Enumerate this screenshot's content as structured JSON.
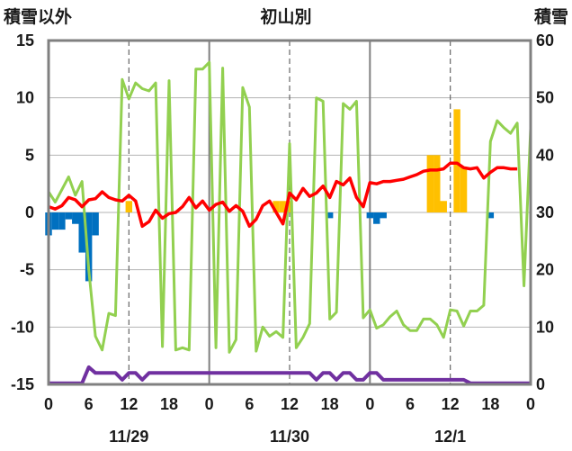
{
  "header": {
    "left_label": "積雪以外",
    "title": "初山別",
    "right_label": "積雪"
  },
  "chart_data": {
    "type": "bar+line",
    "title": "初山別",
    "ylabel_left": "積雪以外",
    "ylabel_right": "積雪",
    "ylim_left": [
      -15,
      15
    ],
    "ylim_right": [
      0,
      60
    ],
    "yticks_left": [
      "15",
      "10",
      "5",
      "0",
      "-5",
      "-10",
      "-15"
    ],
    "yticks_right": [
      "60",
      "50",
      "40",
      "30",
      "20",
      "10",
      "0"
    ],
    "xlim_hours": [
      0,
      72
    ],
    "xtick_labels": [
      "0",
      "6",
      "12",
      "18",
      "0",
      "6",
      "12",
      "18",
      "0",
      "6",
      "12",
      "18",
      "0"
    ],
    "date_labels": [
      "11/29",
      "11/30",
      "12/1"
    ],
    "grid": "dashed vertical lines at 12h, solid at day boundaries",
    "colors": {
      "positive_bar": "#ffc000",
      "negative_bar": "#0070c0",
      "temperature": "#ff0000",
      "snow_depth": "#92d050",
      "bottom_series": "#7030a0",
      "frame": "#808080"
    },
    "bar_series": [
      {
        "x": 0,
        "value": -2.0
      },
      {
        "x": 1,
        "value": -1.5
      },
      {
        "x": 2,
        "value": -1.5
      },
      {
        "x": 3,
        "value": -0.6
      },
      {
        "x": 4,
        "value": -1.0
      },
      {
        "x": 5,
        "value": -3.5
      },
      {
        "x": 6,
        "value": -6.0
      },
      {
        "x": 7,
        "value": -2.0
      },
      {
        "x": 12,
        "value": 1.0
      },
      {
        "x": 34,
        "value": 1.0
      },
      {
        "x": 35,
        "value": 1.0
      },
      {
        "x": 36,
        "value": 1.0
      },
      {
        "x": 42,
        "value": -0.5
      },
      {
        "x": 48,
        "value": -0.5
      },
      {
        "x": 49,
        "value": -1.0
      },
      {
        "x": 50,
        "value": -0.5
      },
      {
        "x": 57,
        "value": 5.0
      },
      {
        "x": 58,
        "value": 5.0
      },
      {
        "x": 59,
        "value": 1.0
      },
      {
        "x": 61,
        "value": 9.0
      },
      {
        "x": 62,
        "value": 4.0
      },
      {
        "x": 66,
        "value": -0.5
      }
    ],
    "temperature_series": [
      {
        "x": 0,
        "y": 0.5
      },
      {
        "x": 1,
        "y": 0.3
      },
      {
        "x": 2,
        "y": 0.6
      },
      {
        "x": 3,
        "y": 1.3
      },
      {
        "x": 4,
        "y": 1.1
      },
      {
        "x": 5,
        "y": 0.5
      },
      {
        "x": 6,
        "y": 1.1
      },
      {
        "x": 7,
        "y": 1.2
      },
      {
        "x": 8,
        "y": 1.8
      },
      {
        "x": 9,
        "y": 1.3
      },
      {
        "x": 10,
        "y": 1.1
      },
      {
        "x": 11,
        "y": 1.0
      },
      {
        "x": 12,
        "y": 1.5
      },
      {
        "x": 13,
        "y": 1.0
      },
      {
        "x": 14,
        "y": -1.2
      },
      {
        "x": 15,
        "y": -0.8
      },
      {
        "x": 16,
        "y": 0.2
      },
      {
        "x": 17,
        "y": -0.5
      },
      {
        "x": 18,
        "y": -0.1
      },
      {
        "x": 19,
        "y": 0.0
      },
      {
        "x": 20,
        "y": 0.5
      },
      {
        "x": 21,
        "y": 1.3
      },
      {
        "x": 22,
        "y": 0.4
      },
      {
        "x": 23,
        "y": 1.0
      },
      {
        "x": 24,
        "y": 0.2
      },
      {
        "x": 25,
        "y": 0.7
      },
      {
        "x": 26,
        "y": 0.9
      },
      {
        "x": 27,
        "y": 0.1
      },
      {
        "x": 28,
        "y": 0.6
      },
      {
        "x": 29,
        "y": 0.1
      },
      {
        "x": 30,
        "y": -1.2
      },
      {
        "x": 31,
        "y": -0.6
      },
      {
        "x": 32,
        "y": 0.6
      },
      {
        "x": 33,
        "y": 1.0
      },
      {
        "x": 34,
        "y": 0.0
      },
      {
        "x": 35,
        "y": -1.0
      },
      {
        "x": 36,
        "y": 1.7
      },
      {
        "x": 37,
        "y": 1.1
      },
      {
        "x": 38,
        "y": 2.1
      },
      {
        "x": 39,
        "y": 1.4
      },
      {
        "x": 40,
        "y": 1.7
      },
      {
        "x": 41,
        "y": 2.3
      },
      {
        "x": 42,
        "y": 1.3
      },
      {
        "x": 43,
        "y": 2.7
      },
      {
        "x": 44,
        "y": 2.4
      },
      {
        "x": 45,
        "y": 3.0
      },
      {
        "x": 46,
        "y": 1.3
      },
      {
        "x": 47,
        "y": 0.5
      },
      {
        "x": 48,
        "y": 2.6
      },
      {
        "x": 49,
        "y": 2.5
      },
      {
        "x": 50,
        "y": 2.7
      },
      {
        "x": 51,
        "y": 2.7
      },
      {
        "x": 52,
        "y": 2.8
      },
      {
        "x": 53,
        "y": 2.9
      },
      {
        "x": 54,
        "y": 3.1
      },
      {
        "x": 55,
        "y": 3.3
      },
      {
        "x": 56,
        "y": 3.6
      },
      {
        "x": 57,
        "y": 3.7
      },
      {
        "x": 58,
        "y": 3.7
      },
      {
        "x": 59,
        "y": 3.8
      },
      {
        "x": 60,
        "y": 4.3
      },
      {
        "x": 61,
        "y": 4.3
      },
      {
        "x": 62,
        "y": 3.9
      },
      {
        "x": 63,
        "y": 3.8
      },
      {
        "x": 64,
        "y": 3.9
      },
      {
        "x": 65,
        "y": 3.0
      },
      {
        "x": 66,
        "y": 3.5
      },
      {
        "x": 67,
        "y": 3.9
      },
      {
        "x": 68,
        "y": 3.9
      },
      {
        "x": 69,
        "y": 3.8
      },
      {
        "x": 70,
        "y": 3.8
      }
    ],
    "snow_depth_series": [
      {
        "x": 0,
        "y": 1.8
      },
      {
        "x": 1,
        "y": 0.9
      },
      {
        "x": 2,
        "y": 2.0
      },
      {
        "x": 3,
        "y": 3.1
      },
      {
        "x": 4,
        "y": 1.5
      },
      {
        "x": 5,
        "y": 2.7
      },
      {
        "x": 6,
        "y": -5.0
      },
      {
        "x": 7,
        "y": -10.8
      },
      {
        "x": 8,
        "y": -12.0
      },
      {
        "x": 9,
        "y": -8.8
      },
      {
        "x": 10,
        "y": -9.0
      },
      {
        "x": 11,
        "y": 11.6
      },
      {
        "x": 12,
        "y": 9.9
      },
      {
        "x": 13,
        "y": 11.3
      },
      {
        "x": 14,
        "y": 10.8
      },
      {
        "x": 15,
        "y": 10.6
      },
      {
        "x": 16,
        "y": 11.3
      },
      {
        "x": 17,
        "y": -11.7
      },
      {
        "x": 18,
        "y": 11.5
      },
      {
        "x": 19,
        "y": -12.0
      },
      {
        "x": 20,
        "y": -11.8
      },
      {
        "x": 21,
        "y": -12.0
      },
      {
        "x": 22,
        "y": 12.5
      },
      {
        "x": 23,
        "y": 12.5
      },
      {
        "x": 24,
        "y": 13.1
      },
      {
        "x": 25,
        "y": -11.8
      },
      {
        "x": 26,
        "y": 12.6
      },
      {
        "x": 27,
        "y": -12.2
      },
      {
        "x": 28,
        "y": -11.1
      },
      {
        "x": 29,
        "y": 10.9
      },
      {
        "x": 30,
        "y": 9.2
      },
      {
        "x": 31,
        "y": -12.1
      },
      {
        "x": 32,
        "y": -10.0
      },
      {
        "x": 33,
        "y": -10.8
      },
      {
        "x": 34,
        "y": -10.4
      },
      {
        "x": 35,
        "y": -10.9
      },
      {
        "x": 36,
        "y": 6.0
      },
      {
        "x": 37,
        "y": -11.8
      },
      {
        "x": 38,
        "y": -10.9
      },
      {
        "x": 39,
        "y": -9.7
      },
      {
        "x": 40,
        "y": 10.0
      },
      {
        "x": 41,
        "y": 9.7
      },
      {
        "x": 42,
        "y": -9.3
      },
      {
        "x": 43,
        "y": -8.7
      },
      {
        "x": 44,
        "y": 9.5
      },
      {
        "x": 45,
        "y": 9.0
      },
      {
        "x": 46,
        "y": 9.7
      },
      {
        "x": 47,
        "y": -9.2
      },
      {
        "x": 48,
        "y": -8.5
      },
      {
        "x": 49,
        "y": -10.1
      },
      {
        "x": 50,
        "y": -9.8
      },
      {
        "x": 51,
        "y": -9.1
      },
      {
        "x": 52,
        "y": -8.6
      },
      {
        "x": 53,
        "y": -9.8
      },
      {
        "x": 54,
        "y": -10.3
      },
      {
        "x": 55,
        "y": -10.3
      },
      {
        "x": 56,
        "y": -9.3
      },
      {
        "x": 57,
        "y": -9.3
      },
      {
        "x": 58,
        "y": -9.8
      },
      {
        "x": 59,
        "y": -10.9
      },
      {
        "x": 60,
        "y": -8.5
      },
      {
        "x": 61,
        "y": -8.6
      },
      {
        "x": 62,
        "y": -9.9
      },
      {
        "x": 63,
        "y": -8.6
      },
      {
        "x": 64,
        "y": -8.6
      },
      {
        "x": 65,
        "y": -8.1
      },
      {
        "x": 66,
        "y": 6.2
      },
      {
        "x": 67,
        "y": 8.0
      },
      {
        "x": 68,
        "y": 7.4
      },
      {
        "x": 69,
        "y": 6.9
      },
      {
        "x": 70,
        "y": 7.8
      },
      {
        "x": 71,
        "y": -6.4
      },
      {
        "x": 72,
        "y": 7.3
      }
    ],
    "bottom_series": [
      {
        "x": 0,
        "y": -14.9
      },
      {
        "x": 5,
        "y": -14.9
      },
      {
        "x": 6,
        "y": -13.5
      },
      {
        "x": 7,
        "y": -14.0
      },
      {
        "x": 10,
        "y": -14.0
      },
      {
        "x": 11,
        "y": -14.6
      },
      {
        "x": 12,
        "y": -14.0
      },
      {
        "x": 13,
        "y": -14.0
      },
      {
        "x": 14,
        "y": -14.6
      },
      {
        "x": 15,
        "y": -14.0
      },
      {
        "x": 39,
        "y": -14.0
      },
      {
        "x": 40,
        "y": -14.6
      },
      {
        "x": 41,
        "y": -14.0
      },
      {
        "x": 42,
        "y": -14.0
      },
      {
        "x": 43,
        "y": -14.6
      },
      {
        "x": 44,
        "y": -14.0
      },
      {
        "x": 45,
        "y": -14.0
      },
      {
        "x": 46,
        "y": -14.6
      },
      {
        "x": 47,
        "y": -14.6
      },
      {
        "x": 48,
        "y": -14.0
      },
      {
        "x": 49,
        "y": -14.0
      },
      {
        "x": 50,
        "y": -14.6
      },
      {
        "x": 62,
        "y": -14.6
      },
      {
        "x": 63,
        "y": -14.9
      },
      {
        "x": 72,
        "y": -14.9
      }
    ]
  }
}
